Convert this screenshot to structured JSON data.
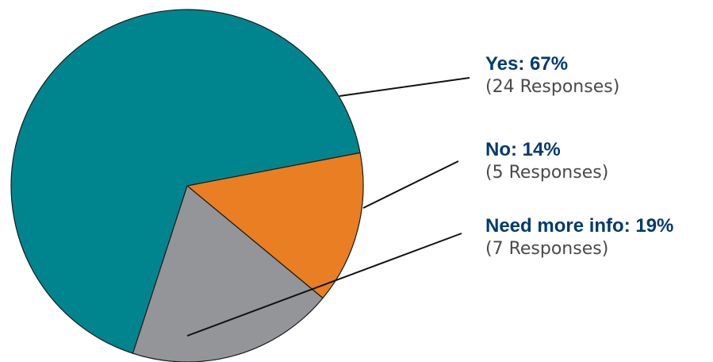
{
  "chart_data": {
    "type": "pie",
    "slices": [
      {
        "label": "Yes",
        "percent": 67,
        "responses": 24,
        "color": "#00858f"
      },
      {
        "label": "No",
        "percent": 14,
        "responses": 5,
        "color": "#e97f22"
      },
      {
        "label": "Need more info",
        "percent": 19,
        "responses": 7,
        "color": "#939598"
      }
    ],
    "label_color": "#003a70",
    "legend_placement": "right"
  },
  "labels": [
    {
      "title": "Yes: 67%",
      "sub": "(24 Responses)"
    },
    {
      "title": "No: 14%",
      "sub": "(5 Responses)"
    },
    {
      "title": "Need more info: 19%",
      "sub": "(7 Responses)"
    }
  ]
}
